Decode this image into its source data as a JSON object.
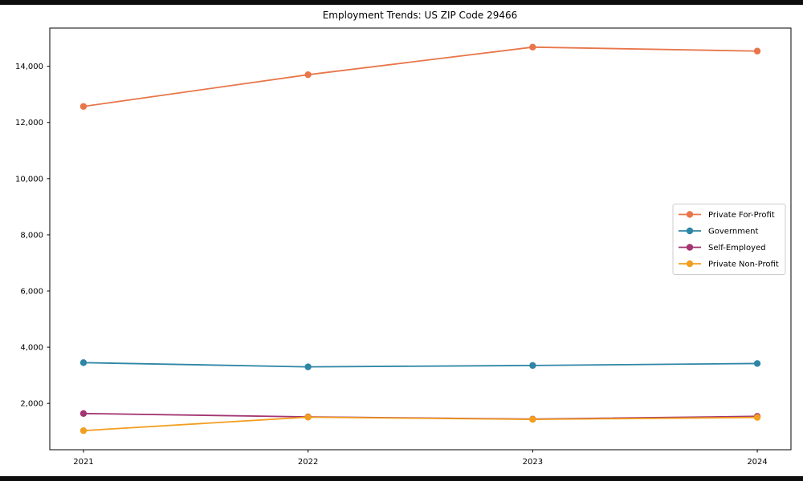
{
  "chart_data": {
    "type": "line",
    "title": "Employment Trends: US ZIP Code 29466",
    "xlabel": "",
    "ylabel": "",
    "x": [
      2021,
      2022,
      2023,
      2024
    ],
    "x_tick_labels": [
      "2021",
      "2022",
      "2023",
      "2024"
    ],
    "series": [
      {
        "name": "Private For-Profit",
        "color": "#e8764a",
        "values": [
          12570,
          13700,
          14680,
          14540
        ]
      },
      {
        "name": "Government",
        "color": "#2e86a5",
        "values": [
          3450,
          3300,
          3350,
          3420
        ]
      },
      {
        "name": "Self-Employed",
        "color": "#a23572",
        "values": [
          1640,
          1520,
          1440,
          1540
        ]
      },
      {
        "name": "Private Non-Profit",
        "color": "#f29e1f",
        "values": [
          1030,
          1510,
          1430,
          1500
        ]
      }
    ],
    "xlim": [
      2020.85,
      2024.15
    ],
    "ylim": [
      350,
      15360
    ],
    "yticks": [
      2000,
      4000,
      6000,
      8000,
      10000,
      12000,
      14000
    ],
    "ytick_labels": [
      "2,000",
      "4,000",
      "6,000",
      "8,000",
      "10,000",
      "12,000",
      "14,000"
    ],
    "grid": false,
    "marker": "circle",
    "legend": {
      "position": "center-right",
      "border_color": "#cccccc",
      "background": "#ffffff",
      "entries": [
        "Private For-Profit",
        "Government",
        "Self-Employed",
        "Private Non-Profit"
      ]
    },
    "spine_color": "#000000"
  }
}
